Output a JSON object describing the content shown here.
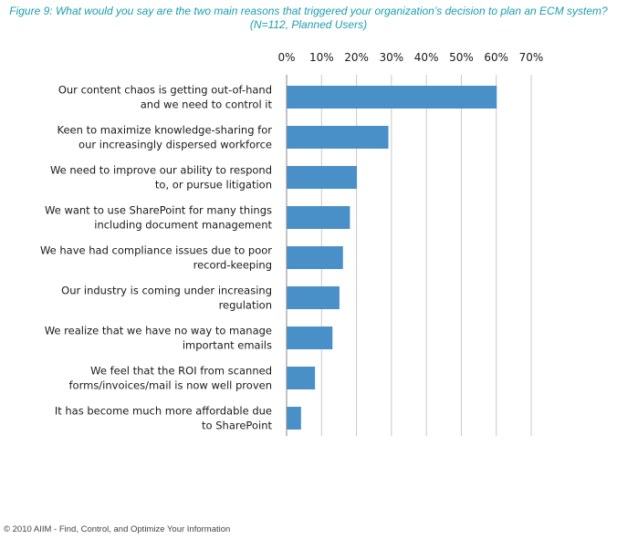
{
  "title": {
    "line1": "Figure 9: What would you say are the two main reasons that triggered your organization’s decision to plan an ECM system?",
    "line2": "(N=112, Planned Users)"
  },
  "colors": {
    "title": "#1a9fb0",
    "bar": "#4a90c8",
    "grid": "#c8c8c8",
    "text": "#1a1a1a"
  },
  "chart_data": {
    "type": "bar",
    "orientation": "horizontal",
    "title": "Figure 9: What would you say are the two main reasons that triggered your organization’s decision to plan an ECM system?",
    "subtitle": "(N=112, Planned Users)",
    "xlabel": "",
    "ylabel": "",
    "xlim": [
      0,
      70
    ],
    "tick_values": [
      0,
      10,
      20,
      30,
      40,
      50,
      60,
      70
    ],
    "tick_labels": [
      "0%",
      "10%",
      "20%",
      "30%",
      "40%",
      "50%",
      "60%",
      "70%"
    ],
    "axis_position": "top",
    "grid": true,
    "categories": [
      [
        "Our content chaos is getting out-of-hand",
        "and we need to control it"
      ],
      [
        "Keen to maximize knowledge-sharing for",
        "our increasingly dispersed workforce"
      ],
      [
        "We need to improve our ability to respond",
        "to, or pursue litigation"
      ],
      [
        "We want to use SharePoint for many things",
        "including document management"
      ],
      [
        "We have had compliance issues due to poor",
        "record-keeping"
      ],
      [
        "Our industry is coming under increasing",
        "regulation"
      ],
      [
        "We realize that we have no way to manage",
        "important emails"
      ],
      [
        "We feel that the ROI from scanned",
        "forms/invoices/mail is now well proven"
      ],
      [
        "It has become much more affordable due",
        "to SharePoint"
      ]
    ],
    "values": [
      60,
      29,
      20,
      18,
      16,
      15,
      13,
      8,
      4
    ]
  },
  "footer": "© 2010 AIIM - Find, Control, and Optimize Your Information"
}
